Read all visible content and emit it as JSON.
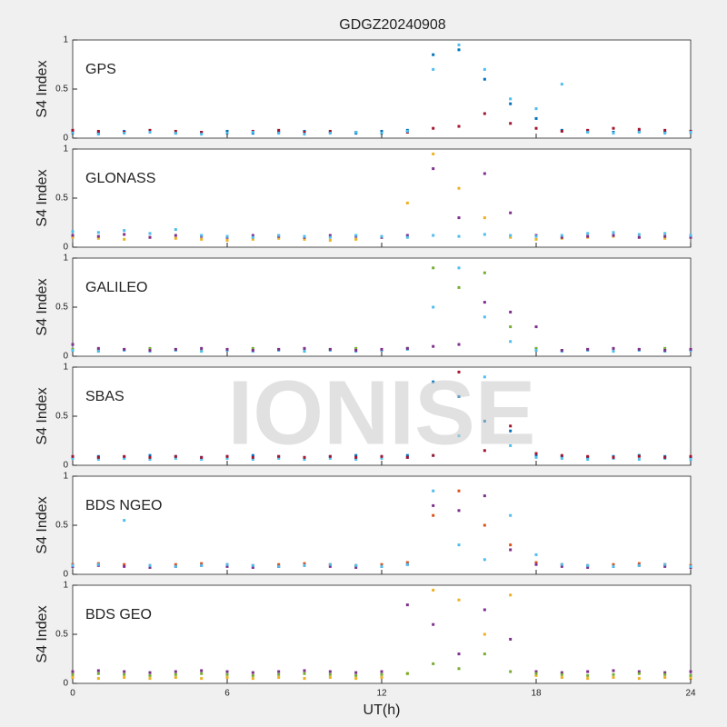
{
  "watermark": "IONISE",
  "chart_data": [
    {
      "type": "scatter",
      "title": "GDGZ20240908",
      "label": "GPS",
      "ylabel": "S4 Index",
      "xlim": [
        0,
        24
      ],
      "ylim": [
        0,
        1
      ],
      "yticks": [
        0,
        0.5,
        1
      ],
      "x": [
        0,
        1,
        2,
        3,
        4,
        5,
        6,
        7,
        8,
        9,
        10,
        11,
        12,
        13,
        14,
        15,
        16,
        17,
        18,
        19,
        20,
        21,
        22,
        23,
        24
      ],
      "series": [
        {
          "color": "#0072bd",
          "values": [
            0.06,
            0.05,
            0.07,
            0.06,
            0.05,
            0.06,
            0.07,
            0.05,
            0.06,
            0.07,
            0.06,
            0.05,
            0.07,
            0.08,
            0.85,
            0.9,
            0.6,
            0.35,
            0.2,
            0.08,
            0.07,
            0.06,
            0.07,
            0.06,
            0.07
          ]
        },
        {
          "color": "#a2142f",
          "values": [
            0.08,
            0.07,
            0.06,
            0.08,
            0.07,
            0.06,
            0.05,
            0.07,
            0.08,
            0.06,
            0.07,
            0.06,
            0.05,
            0.06,
            0.1,
            0.12,
            0.25,
            0.15,
            0.1,
            0.07,
            0.08,
            0.1,
            0.09,
            0.08,
            0.07
          ]
        },
        {
          "color": "#4dbeee",
          "values": [
            0.05,
            0.04,
            0.05,
            0.06,
            0.05,
            0.04,
            0.05,
            0.06,
            0.05,
            0.04,
            0.05,
            0.06,
            0.05,
            0.07,
            0.7,
            0.95,
            0.7,
            0.4,
            0.3,
            0.55,
            0.06,
            0.05,
            0.06,
            0.05,
            0.06
          ]
        }
      ]
    },
    {
      "type": "scatter",
      "label": "GLONASS",
      "ylabel": "S4 Index",
      "xlim": [
        0,
        24
      ],
      "ylim": [
        0,
        1
      ],
      "yticks": [
        0,
        0.5,
        1
      ],
      "x": [
        0,
        1,
        2,
        3,
        4,
        5,
        6,
        7,
        8,
        9,
        10,
        11,
        12,
        13,
        14,
        15,
        16,
        17,
        18,
        19,
        20,
        21,
        22,
        23,
        24
      ],
      "series": [
        {
          "color": "#edb120",
          "values": [
            0.1,
            0.09,
            0.08,
            0.1,
            0.09,
            0.08,
            0.07,
            0.08,
            0.09,
            0.08,
            0.07,
            0.08,
            0.1,
            0.45,
            0.95,
            0.6,
            0.3,
            0.1,
            0.08,
            0.09,
            0.1,
            0.11,
            0.1,
            0.09,
            0.1
          ]
        },
        {
          "color": "#7e2f8e",
          "values": [
            0.12,
            0.11,
            0.13,
            0.1,
            0.12,
            0.11,
            0.1,
            0.12,
            0.11,
            0.1,
            0.12,
            0.11,
            0.1,
            0.12,
            0.8,
            0.3,
            0.75,
            0.35,
            0.12,
            0.1,
            0.11,
            0.12,
            0.1,
            0.11,
            0.1
          ]
        },
        {
          "color": "#4dbeee",
          "values": [
            0.16,
            0.15,
            0.17,
            0.14,
            0.18,
            0.12,
            0.11,
            0.1,
            0.12,
            0.11,
            0.1,
            0.12,
            0.11,
            0.1,
            0.12,
            0.11,
            0.13,
            0.12,
            0.11,
            0.12,
            0.14,
            0.15,
            0.13,
            0.14,
            0.12
          ]
        }
      ]
    },
    {
      "type": "scatter",
      "label": "GALILEO",
      "ylabel": "S4 Index",
      "xlim": [
        0,
        24
      ],
      "ylim": [
        0,
        1
      ],
      "yticks": [
        0,
        0.5,
        1
      ],
      "x": [
        0,
        1,
        2,
        3,
        4,
        5,
        6,
        7,
        8,
        9,
        10,
        11,
        12,
        13,
        14,
        15,
        16,
        17,
        18,
        19,
        20,
        21,
        22,
        23,
        24
      ],
      "series": [
        {
          "color": "#77ac30",
          "values": [
            0.07,
            0.06,
            0.07,
            0.08,
            0.07,
            0.06,
            0.07,
            0.08,
            0.07,
            0.06,
            0.07,
            0.08,
            0.07,
            0.08,
            0.9,
            0.7,
            0.85,
            0.3,
            0.08,
            0.06,
            0.07,
            0.06,
            0.07,
            0.08,
            0.07
          ]
        },
        {
          "color": "#4dbeee",
          "values": [
            0.06,
            0.05,
            0.06,
            0.05,
            0.06,
            0.05,
            0.06,
            0.05,
            0.06,
            0.05,
            0.06,
            0.05,
            0.06,
            0.07,
            0.5,
            0.9,
            0.4,
            0.15,
            0.06,
            0.05,
            0.06,
            0.05,
            0.06,
            0.05,
            0.06
          ]
        },
        {
          "color": "#7e2f8e",
          "values": [
            0.12,
            0.08,
            0.07,
            0.06,
            0.07,
            0.08,
            0.07,
            0.06,
            0.07,
            0.08,
            0.07,
            0.06,
            0.07,
            0.08,
            0.1,
            0.12,
            0.55,
            0.45,
            0.3,
            0.06,
            0.07,
            0.08,
            0.07,
            0.06,
            0.07
          ]
        }
      ]
    },
    {
      "type": "scatter",
      "label": "SBAS",
      "ylabel": "S4 Index",
      "xlim": [
        0,
        24
      ],
      "ylim": [
        0,
        1
      ],
      "yticks": [
        0,
        0.5,
        1
      ],
      "x": [
        0,
        1,
        2,
        3,
        4,
        5,
        6,
        7,
        8,
        9,
        10,
        11,
        12,
        13,
        14,
        15,
        16,
        17,
        18,
        19,
        20,
        21,
        22,
        23,
        24
      ],
      "series": [
        {
          "color": "#0072bd",
          "values": [
            0.08,
            0.09,
            0.08,
            0.1,
            0.09,
            0.08,
            0.09,
            0.1,
            0.09,
            0.08,
            0.09,
            0.1,
            0.09,
            0.1,
            0.85,
            0.7,
            0.45,
            0.35,
            0.1,
            0.09,
            0.08,
            0.09,
            0.1,
            0.09,
            0.08
          ]
        },
        {
          "color": "#4dbeee",
          "values": [
            0.07,
            0.06,
            0.07,
            0.06,
            0.07,
            0.06,
            0.07,
            0.06,
            0.07,
            0.06,
            0.07,
            0.06,
            0.07,
            0.08,
            0.1,
            0.3,
            0.9,
            0.2,
            0.08,
            0.07,
            0.06,
            0.07,
            0.06,
            0.07,
            0.06
          ]
        },
        {
          "color": "#a2142f",
          "values": [
            0.09,
            0.08,
            0.09,
            0.08,
            0.09,
            0.08,
            0.09,
            0.08,
            0.09,
            0.08,
            0.09,
            0.08,
            0.09,
            0.08,
            0.1,
            0.95,
            0.15,
            0.4,
            0.12,
            0.1,
            0.09,
            0.08,
            0.09,
            0.08,
            0.09
          ]
        }
      ]
    },
    {
      "type": "scatter",
      "label": "BDS NGEO",
      "ylabel": "S4 Index",
      "xlim": [
        0,
        24
      ],
      "ylim": [
        0,
        1
      ],
      "yticks": [
        0,
        0.5,
        1
      ],
      "x": [
        0,
        1,
        2,
        3,
        4,
        5,
        6,
        7,
        8,
        9,
        10,
        11,
        12,
        13,
        14,
        15,
        16,
        17,
        18,
        19,
        20,
        21,
        22,
        23,
        24
      ],
      "series": [
        {
          "color": "#d95319",
          "values": [
            0.1,
            0.11,
            0.1,
            0.09,
            0.1,
            0.11,
            0.1,
            0.09,
            0.1,
            0.11,
            0.1,
            0.09,
            0.1,
            0.12,
            0.6,
            0.85,
            0.5,
            0.3,
            0.12,
            0.1,
            0.09,
            0.1,
            0.11,
            0.1,
            0.09
          ]
        },
        {
          "color": "#7e2f8e",
          "values": [
            0.08,
            0.09,
            0.08,
            0.07,
            0.08,
            0.09,
            0.08,
            0.07,
            0.08,
            0.09,
            0.08,
            0.07,
            0.08,
            0.1,
            0.7,
            0.65,
            0.8,
            0.25,
            0.1,
            0.08,
            0.07,
            0.08,
            0.09,
            0.08,
            0.07
          ]
        },
        {
          "color": "#4dbeee",
          "values": [
            0.09,
            0.1,
            0.55,
            0.09,
            0.08,
            0.09,
            0.1,
            0.09,
            0.08,
            0.09,
            0.1,
            0.09,
            0.08,
            0.1,
            0.85,
            0.3,
            0.15,
            0.6,
            0.2,
            0.1,
            0.09,
            0.08,
            0.09,
            0.1,
            0.08
          ]
        }
      ]
    },
    {
      "type": "scatter",
      "label": "BDS GEO",
      "ylabel": "S4 Index",
      "xlabel": "UT(h)",
      "xlim": [
        0,
        24
      ],
      "ylim": [
        0,
        1
      ],
      "yticks": [
        0,
        0.5,
        1
      ],
      "xticks": [
        0,
        6,
        12,
        18,
        24
      ],
      "x": [
        0,
        1,
        2,
        3,
        4,
        5,
        6,
        7,
        8,
        9,
        10,
        11,
        12,
        13,
        14,
        15,
        16,
        17,
        18,
        19,
        20,
        21,
        22,
        23,
        24
      ],
      "series": [
        {
          "color": "#7e2f8e",
          "values": [
            0.12,
            0.13,
            0.12,
            0.11,
            0.12,
            0.13,
            0.12,
            0.11,
            0.12,
            0.13,
            0.12,
            0.11,
            0.12,
            0.8,
            0.6,
            0.3,
            0.75,
            0.45,
            0.12,
            0.11,
            0.12,
            0.13,
            0.12,
            0.11,
            0.12
          ]
        },
        {
          "color": "#edb120",
          "values": [
            0.06,
            0.05,
            0.06,
            0.05,
            0.06,
            0.05,
            0.06,
            0.05,
            0.06,
            0.05,
            0.06,
            0.05,
            0.06,
            0.1,
            0.95,
            0.85,
            0.5,
            0.9,
            0.08,
            0.06,
            0.05,
            0.06,
            0.05,
            0.06,
            0.05
          ]
        },
        {
          "color": "#77ac30",
          "values": [
            0.09,
            0.1,
            0.09,
            0.08,
            0.09,
            0.1,
            0.09,
            0.08,
            0.09,
            0.1,
            0.09,
            0.08,
            0.09,
            0.1,
            0.2,
            0.15,
            0.3,
            0.12,
            0.1,
            0.09,
            0.08,
            0.09,
            0.1,
            0.09,
            0.08
          ]
        }
      ]
    }
  ]
}
